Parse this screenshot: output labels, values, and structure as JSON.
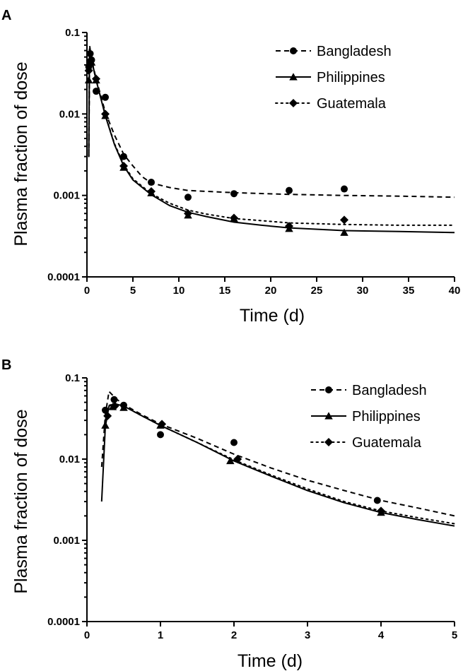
{
  "chart_data": [
    {
      "panel": "A",
      "type": "scatter",
      "xlabel": "Time (d)",
      "ylabel": "Plasma fraction of dose",
      "xlim": [
        0,
        40
      ],
      "ylim": [
        0.0001,
        0.1
      ],
      "yscale": "log",
      "xticks": [
        "0",
        "5",
        "10",
        "15",
        "20",
        "25",
        "30",
        "35",
        "40"
      ],
      "yticks": [
        "0.1",
        "0.01",
        "0.001",
        "0.0001"
      ],
      "legend_position": "top-right",
      "series": [
        {
          "name": "Bangladesh",
          "marker": "circle",
          "line": "dashed",
          "points": [
            [
              0.2,
              0.038
            ],
            [
              0.35,
              0.055
            ],
            [
              0.5,
              0.046
            ],
            [
              1,
              0.019
            ],
            [
              2,
              0.016
            ],
            [
              4,
              0.003
            ],
            [
              7,
              0.00145
            ],
            [
              11,
              0.00095
            ],
            [
              16,
              0.00105
            ],
            [
              22,
              0.00115
            ],
            [
              28,
              0.0012
            ]
          ],
          "fit": [
            [
              0.2,
              0.003
            ],
            [
              0.3,
              0.068
            ],
            [
              0.5,
              0.047
            ],
            [
              1,
              0.027
            ],
            [
              2,
              0.0105
            ],
            [
              3,
              0.0055
            ],
            [
              4,
              0.0032
            ],
            [
              5,
              0.0023
            ],
            [
              6,
              0.0017
            ],
            [
              7,
              0.00142
            ],
            [
              9,
              0.00125
            ],
            [
              11,
              0.00115
            ],
            [
              16,
              0.00108
            ],
            [
              22,
              0.00103
            ],
            [
              28,
              0.001
            ],
            [
              34,
              0.00098
            ],
            [
              40,
              0.00095
            ]
          ]
        },
        {
          "name": "Philippines",
          "marker": "triangle",
          "line": "solid",
          "points": [
            [
              0.2,
              0.026
            ],
            [
              0.35,
              0.044
            ],
            [
              0.5,
              0.043
            ],
            [
              1,
              0.026
            ],
            [
              2,
              0.0095
            ],
            [
              4,
              0.0022
            ],
            [
              7,
              0.00107
            ],
            [
              11,
              0.00057
            ],
            [
              16,
              0.00052
            ],
            [
              22,
              0.00039
            ],
            [
              28,
              0.00035
            ]
          ],
          "fit": [
            [
              0.2,
              0.003
            ],
            [
              0.28,
              0.062
            ],
            [
              0.5,
              0.046
            ],
            [
              1,
              0.026
            ],
            [
              2,
              0.0095
            ],
            [
              3,
              0.0042
            ],
            [
              4,
              0.0023
            ],
            [
              5,
              0.00155
            ],
            [
              7,
              0.00102
            ],
            [
              9,
              0.00075
            ],
            [
              11,
              0.00062
            ],
            [
              13,
              0.00055
            ],
            [
              16,
              0.00047
            ],
            [
              19,
              0.00043
            ],
            [
              22,
              0.0004
            ],
            [
              28,
              0.00037
            ],
            [
              34,
              0.00036
            ],
            [
              40,
              0.00035
            ]
          ]
        },
        {
          "name": "Guatemala",
          "marker": "diamond",
          "line": "dotted",
          "points": [
            [
              0.2,
              0.034
            ],
            [
              0.35,
              0.045
            ],
            [
              1,
              0.027
            ],
            [
              2,
              0.01
            ],
            [
              4,
              0.0023
            ],
            [
              7,
              0.00112
            ],
            [
              11,
              0.0006
            ],
            [
              16,
              0.00053
            ],
            [
              22,
              0.00042
            ],
            [
              28,
              0.0005
            ]
          ],
          "fit": [
            [
              0.2,
              0.003
            ],
            [
              0.28,
              0.063
            ],
            [
              0.5,
              0.046
            ],
            [
              1,
              0.026
            ],
            [
              2,
              0.0097
            ],
            [
              3,
              0.0043
            ],
            [
              4,
              0.0024
            ],
            [
              5,
              0.0016
            ],
            [
              7,
              0.00105
            ],
            [
              9,
              0.0008
            ],
            [
              11,
              0.00066
            ],
            [
              13,
              0.00059
            ],
            [
              16,
              0.00052
            ],
            [
              19,
              0.00049
            ],
            [
              22,
              0.00046
            ],
            [
              28,
              0.00044
            ],
            [
              34,
              0.00043
            ],
            [
              40,
              0.00043
            ]
          ]
        }
      ]
    },
    {
      "panel": "B",
      "type": "scatter",
      "xlabel": "Time (d)",
      "ylabel": "Plasma fraction of dose",
      "xlim": [
        0,
        5
      ],
      "ylim": [
        0.0001,
        0.1
      ],
      "yscale": "log",
      "xticks": [
        "0",
        "1",
        "2",
        "3",
        "4",
        "5"
      ],
      "yticks": [
        "0.1",
        "0.01",
        "0.001",
        "0.0001"
      ],
      "legend_position": "top-right",
      "series": [
        {
          "name": "Bangladesh",
          "marker": "circle",
          "line": "dashed",
          "points": [
            [
              0.25,
              0.04
            ],
            [
              0.37,
              0.054
            ],
            [
              0.5,
              0.046
            ],
            [
              1,
              0.02
            ],
            [
              2,
              0.016
            ],
            [
              3.95,
              0.0031
            ]
          ],
          "fit": [
            [
              0.2,
              0.008
            ],
            [
              0.25,
              0.035
            ],
            [
              0.3,
              0.068
            ],
            [
              0.4,
              0.055
            ],
            [
              0.5,
              0.047
            ],
            [
              0.75,
              0.035
            ],
            [
              1,
              0.027
            ],
            [
              1.5,
              0.018
            ],
            [
              2,
              0.0115
            ],
            [
              2.5,
              0.0078
            ],
            [
              3,
              0.0055
            ],
            [
              3.5,
              0.0041
            ],
            [
              4,
              0.0031
            ],
            [
              4.5,
              0.0025
            ],
            [
              5,
              0.002
            ]
          ]
        },
        {
          "name": "Philippines",
          "marker": "triangle",
          "line": "solid",
          "points": [
            [
              0.25,
              0.026
            ],
            [
              0.35,
              0.044
            ],
            [
              0.5,
              0.043
            ],
            [
              1,
              0.026
            ],
            [
              1.95,
              0.0095
            ],
            [
              4,
              0.0022
            ]
          ],
          "fit": [
            [
              0.2,
              0.003
            ],
            [
              0.25,
              0.025
            ],
            [
              0.3,
              0.045
            ],
            [
              0.38,
              0.048
            ],
            [
              0.5,
              0.045
            ],
            [
              0.75,
              0.034
            ],
            [
              1,
              0.026
            ],
            [
              1.5,
              0.016
            ],
            [
              2,
              0.0095
            ],
            [
              2.5,
              0.0062
            ],
            [
              3,
              0.0041
            ],
            [
              3.5,
              0.0029
            ],
            [
              4,
              0.0022
            ],
            [
              4.5,
              0.0018
            ],
            [
              5,
              0.0015
            ]
          ]
        },
        {
          "name": "Guatemala",
          "marker": "diamond",
          "line": "dotted",
          "points": [
            [
              0.28,
              0.034
            ],
            [
              0.38,
              0.045
            ],
            [
              1.02,
              0.027
            ],
            [
              2.05,
              0.01
            ],
            [
              4,
              0.0023
            ]
          ],
          "fit": [
            [
              0.25,
              0.03
            ],
            [
              0.3,
              0.046
            ],
            [
              0.38,
              0.048
            ],
            [
              0.5,
              0.045
            ],
            [
              0.75,
              0.034
            ],
            [
              1,
              0.026
            ],
            [
              1.5,
              0.016
            ],
            [
              2,
              0.0098
            ],
            [
              2.5,
              0.0064
            ],
            [
              3,
              0.0043
            ],
            [
              3.5,
              0.003
            ],
            [
              4,
              0.0023
            ],
            [
              4.5,
              0.0019
            ],
            [
              5,
              0.0016
            ]
          ]
        }
      ]
    }
  ]
}
